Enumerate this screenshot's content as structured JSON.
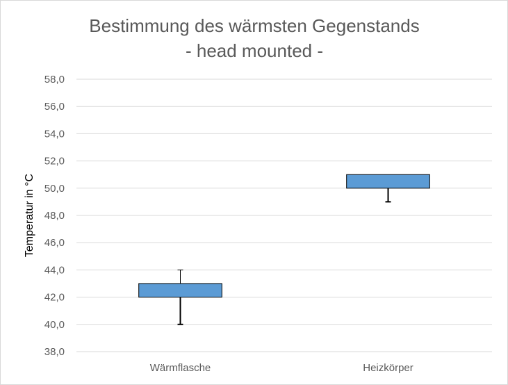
{
  "chart_data": {
    "type": "box",
    "title": "Bestimmung des wärmsten Gegenstands",
    "subtitle": "- head mounted -",
    "xlabel": "",
    "ylabel": "Temperatur in °C",
    "ylim": [
      38,
      58
    ],
    "ytick_step": 2,
    "ytick_labels": [
      "38,0",
      "40,0",
      "42,0",
      "44,0",
      "46,0",
      "48,0",
      "50,0",
      "52,0",
      "54,0",
      "56,0",
      "58,0"
    ],
    "grid": true,
    "categories": [
      "Wärmflasche",
      "Heizkörper"
    ],
    "boxes": [
      {
        "category": "Wärmflasche",
        "min": 40,
        "q1": 42,
        "median": 43,
        "q3": 43,
        "max": 44
      },
      {
        "category": "Heizkörper",
        "min": 49,
        "q1": 50,
        "median": 51,
        "q3": 51,
        "max": 51
      }
    ],
    "colors": {
      "box_fill": "#5b9bd5",
      "box_stroke": "#000000",
      "grid": "#d9d9d9",
      "text": "#595959"
    }
  }
}
